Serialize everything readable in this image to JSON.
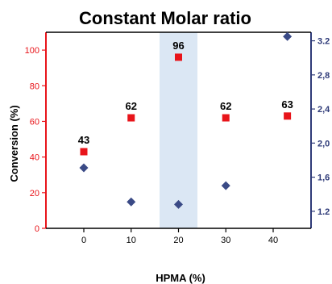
{
  "chart_data": {
    "type": "scatter",
    "title": "Constant Molar ratio",
    "xlabel": "HPMA (%)",
    "ylabel": "Conversion (%)",
    "xlim": [
      -8,
      48
    ],
    "ylim": [
      0,
      110
    ],
    "y2lim": [
      1.0,
      3.3
    ],
    "x_ticks": [
      0,
      10,
      20,
      30,
      40
    ],
    "y_ticks": [
      0,
      20,
      40,
      60,
      80,
      100
    ],
    "y2_ticks": [
      "1.2",
      "1.6",
      "2.0",
      "2.4",
      "2.8",
      "3.2"
    ],
    "y2_tick_values": [
      1.2,
      1.6,
      2.0,
      2.4,
      2.8,
      3.2
    ],
    "y2_ticks_displayed": [
      "1.2",
      "1,6",
      "2,0",
      "2,4",
      "2,8",
      "3.2"
    ],
    "highlight": {
      "x_range": [
        16,
        24
      ],
      "color": "#dbe7f4"
    },
    "colors": {
      "conversion": "#e8141a",
      "secondary": "#3a4a86",
      "left_axis": "#e8141a",
      "right_axis": "#2e3a78"
    },
    "series": [
      {
        "axis": "left",
        "marker": "square",
        "x": [
          0,
          10,
          20,
          30,
          43
        ],
        "y": [
          43,
          62,
          96,
          62,
          63
        ],
        "labels": [
          "43",
          "62",
          "96",
          "62",
          "63"
        ]
      },
      {
        "axis": "right",
        "marker": "diamond",
        "x": [
          0,
          10,
          20,
          30,
          43
        ],
        "y": [
          1.71,
          1.31,
          1.28,
          1.5,
          3.25
        ]
      }
    ]
  }
}
